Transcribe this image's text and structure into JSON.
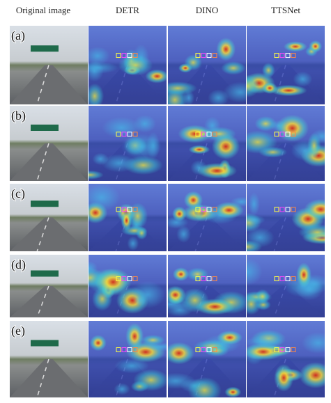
{
  "columns": [
    "Original image",
    "DETR",
    "DINO",
    "TTSNet"
  ],
  "rows": [
    "(a)",
    "(b)",
    "(c)",
    "(d)",
    "(e)"
  ]
}
